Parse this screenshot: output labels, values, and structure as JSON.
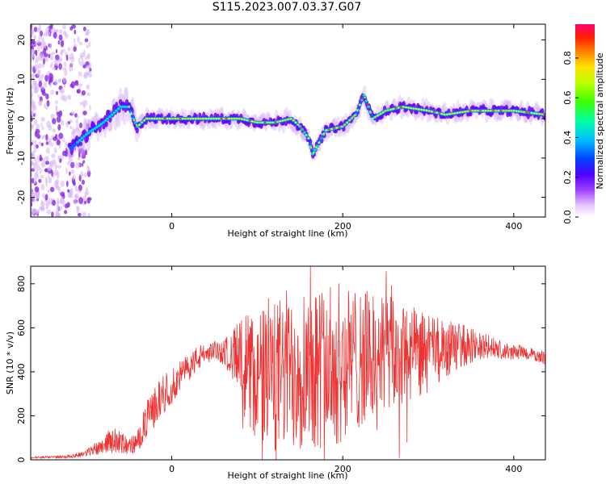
{
  "title": "S115.2023.007.03.37.G07",
  "chart_data": [
    {
      "type": "heatmap",
      "xlabel": "Height of straight line (km)",
      "ylabel": "Frequency (Hz)",
      "xlim": [
        -165,
        437
      ],
      "ylim": [
        -25,
        24
      ],
      "xticks": [
        0,
        200,
        400
      ],
      "yticks": [
        -20,
        -10,
        0,
        10,
        20
      ],
      "grid": false,
      "colorbar": {
        "label": "Normalized spectral amplitude",
        "range": [
          0,
          0.97
        ],
        "ticks": [
          0.0,
          0.2,
          0.4,
          0.6,
          0.8
        ],
        "colormap": [
          "#f0e0ff",
          "#a040ff",
          "#5000ff",
          "#0040ff",
          "#00e0ff",
          "#00ff60",
          "#c0ff00",
          "#ffd000",
          "#ff4000",
          "#ff0060"
        ]
      },
      "ridge": {
        "x": [
          -120,
          -100,
          -80,
          -60,
          -50,
          -45,
          -40,
          -30,
          -20,
          0,
          50,
          80,
          100,
          120,
          140,
          150,
          160,
          165,
          170,
          180,
          200,
          215,
          225,
          235,
          250,
          270,
          300,
          320,
          350,
          400,
          437
        ],
        "y": [
          -8,
          -4,
          -1,
          3,
          3,
          0,
          -2,
          0,
          0,
          0,
          0,
          0,
          -1,
          -1,
          0,
          -2,
          -5,
          -9,
          -7,
          -3,
          -2,
          1,
          6,
          0,
          2,
          3,
          2,
          1,
          2,
          2,
          1
        ]
      }
    },
    {
      "type": "line",
      "xlabel": "Height of straight line (km)",
      "ylabel": "SNR (10 * v/v)",
      "xlim": [
        -165,
        437
      ],
      "ylim": [
        0,
        880
      ],
      "xticks": [
        0,
        200,
        400
      ],
      "yticks": [
        0,
        200,
        400,
        600,
        800
      ],
      "color": "#ee3333",
      "envelope": {
        "x": [
          -165,
          -140,
          -120,
          -100,
          -90,
          -80,
          -70,
          -60,
          -50,
          -40,
          -30,
          -20,
          -10,
          0,
          10,
          20,
          30,
          40,
          50,
          60,
          70,
          80,
          90,
          100,
          110,
          120,
          130,
          140,
          150,
          160,
          170,
          180,
          190,
          200,
          210,
          220,
          230,
          240,
          250,
          260,
          270,
          280,
          290,
          300,
          310,
          320,
          330,
          340,
          350,
          360,
          370,
          380,
          390,
          400,
          410,
          420,
          430,
          437
        ],
        "base": [
          10,
          12,
          15,
          30,
          50,
          70,
          90,
          80,
          60,
          80,
          180,
          240,
          300,
          330,
          380,
          420,
          460,
          480,
          500,
          490,
          480,
          460,
          400,
          380,
          360,
          370,
          400,
          420,
          430,
          440,
          430,
          420,
          430,
          440,
          450,
          460,
          470,
          470,
          480,
          470,
          470,
          480,
          480,
          480,
          490,
          500,
          510,
          520,
          520,
          520,
          510,
          500,
          490,
          490,
          490,
          480,
          470,
          460
        ],
        "spread": [
          4,
          5,
          6,
          15,
          30,
          40,
          60,
          50,
          40,
          50,
          80,
          90,
          90,
          80,
          70,
          60,
          60,
          50,
          40,
          60,
          100,
          200,
          280,
          300,
          330,
          350,
          360,
          380,
          380,
          380,
          380,
          380,
          380,
          360,
          340,
          320,
          300,
          300,
          280,
          260,
          240,
          220,
          200,
          180,
          160,
          140,
          120,
          100,
          80,
          70,
          60,
          50,
          40,
          35,
          30,
          30,
          30,
          30
        ]
      }
    }
  ]
}
